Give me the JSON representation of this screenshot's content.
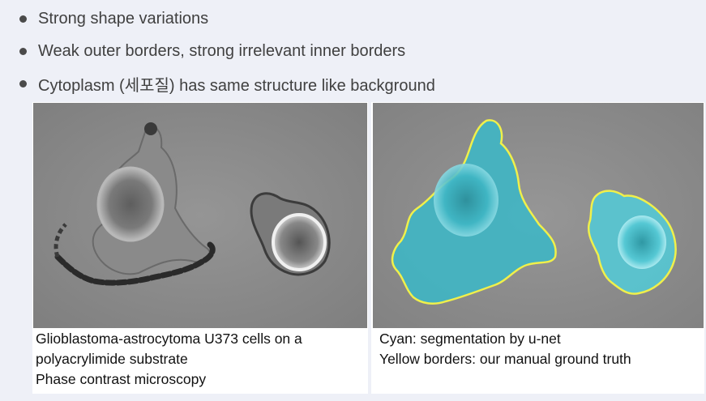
{
  "bullets": [
    "Strong shape variations",
    "Weak outer borders, strong irrelevant inner borders",
    "Cytoplasm (세포질) has same structure like background"
  ],
  "left_figure": {
    "caption_lines": [
      "Glioblastoma-astrocytoma U373 cells on a",
      "polyacrylimide substrate",
      "Phase contrast microscopy"
    ]
  },
  "right_figure": {
    "caption_lines": [
      "Cyan: segmentation by u-net",
      "Yellow borders: our manual ground truth"
    ]
  },
  "colors": {
    "segmentation": "#3fb6c4",
    "ground_truth_border": "#f0f04a",
    "background_gray": "#8c8c8c"
  }
}
